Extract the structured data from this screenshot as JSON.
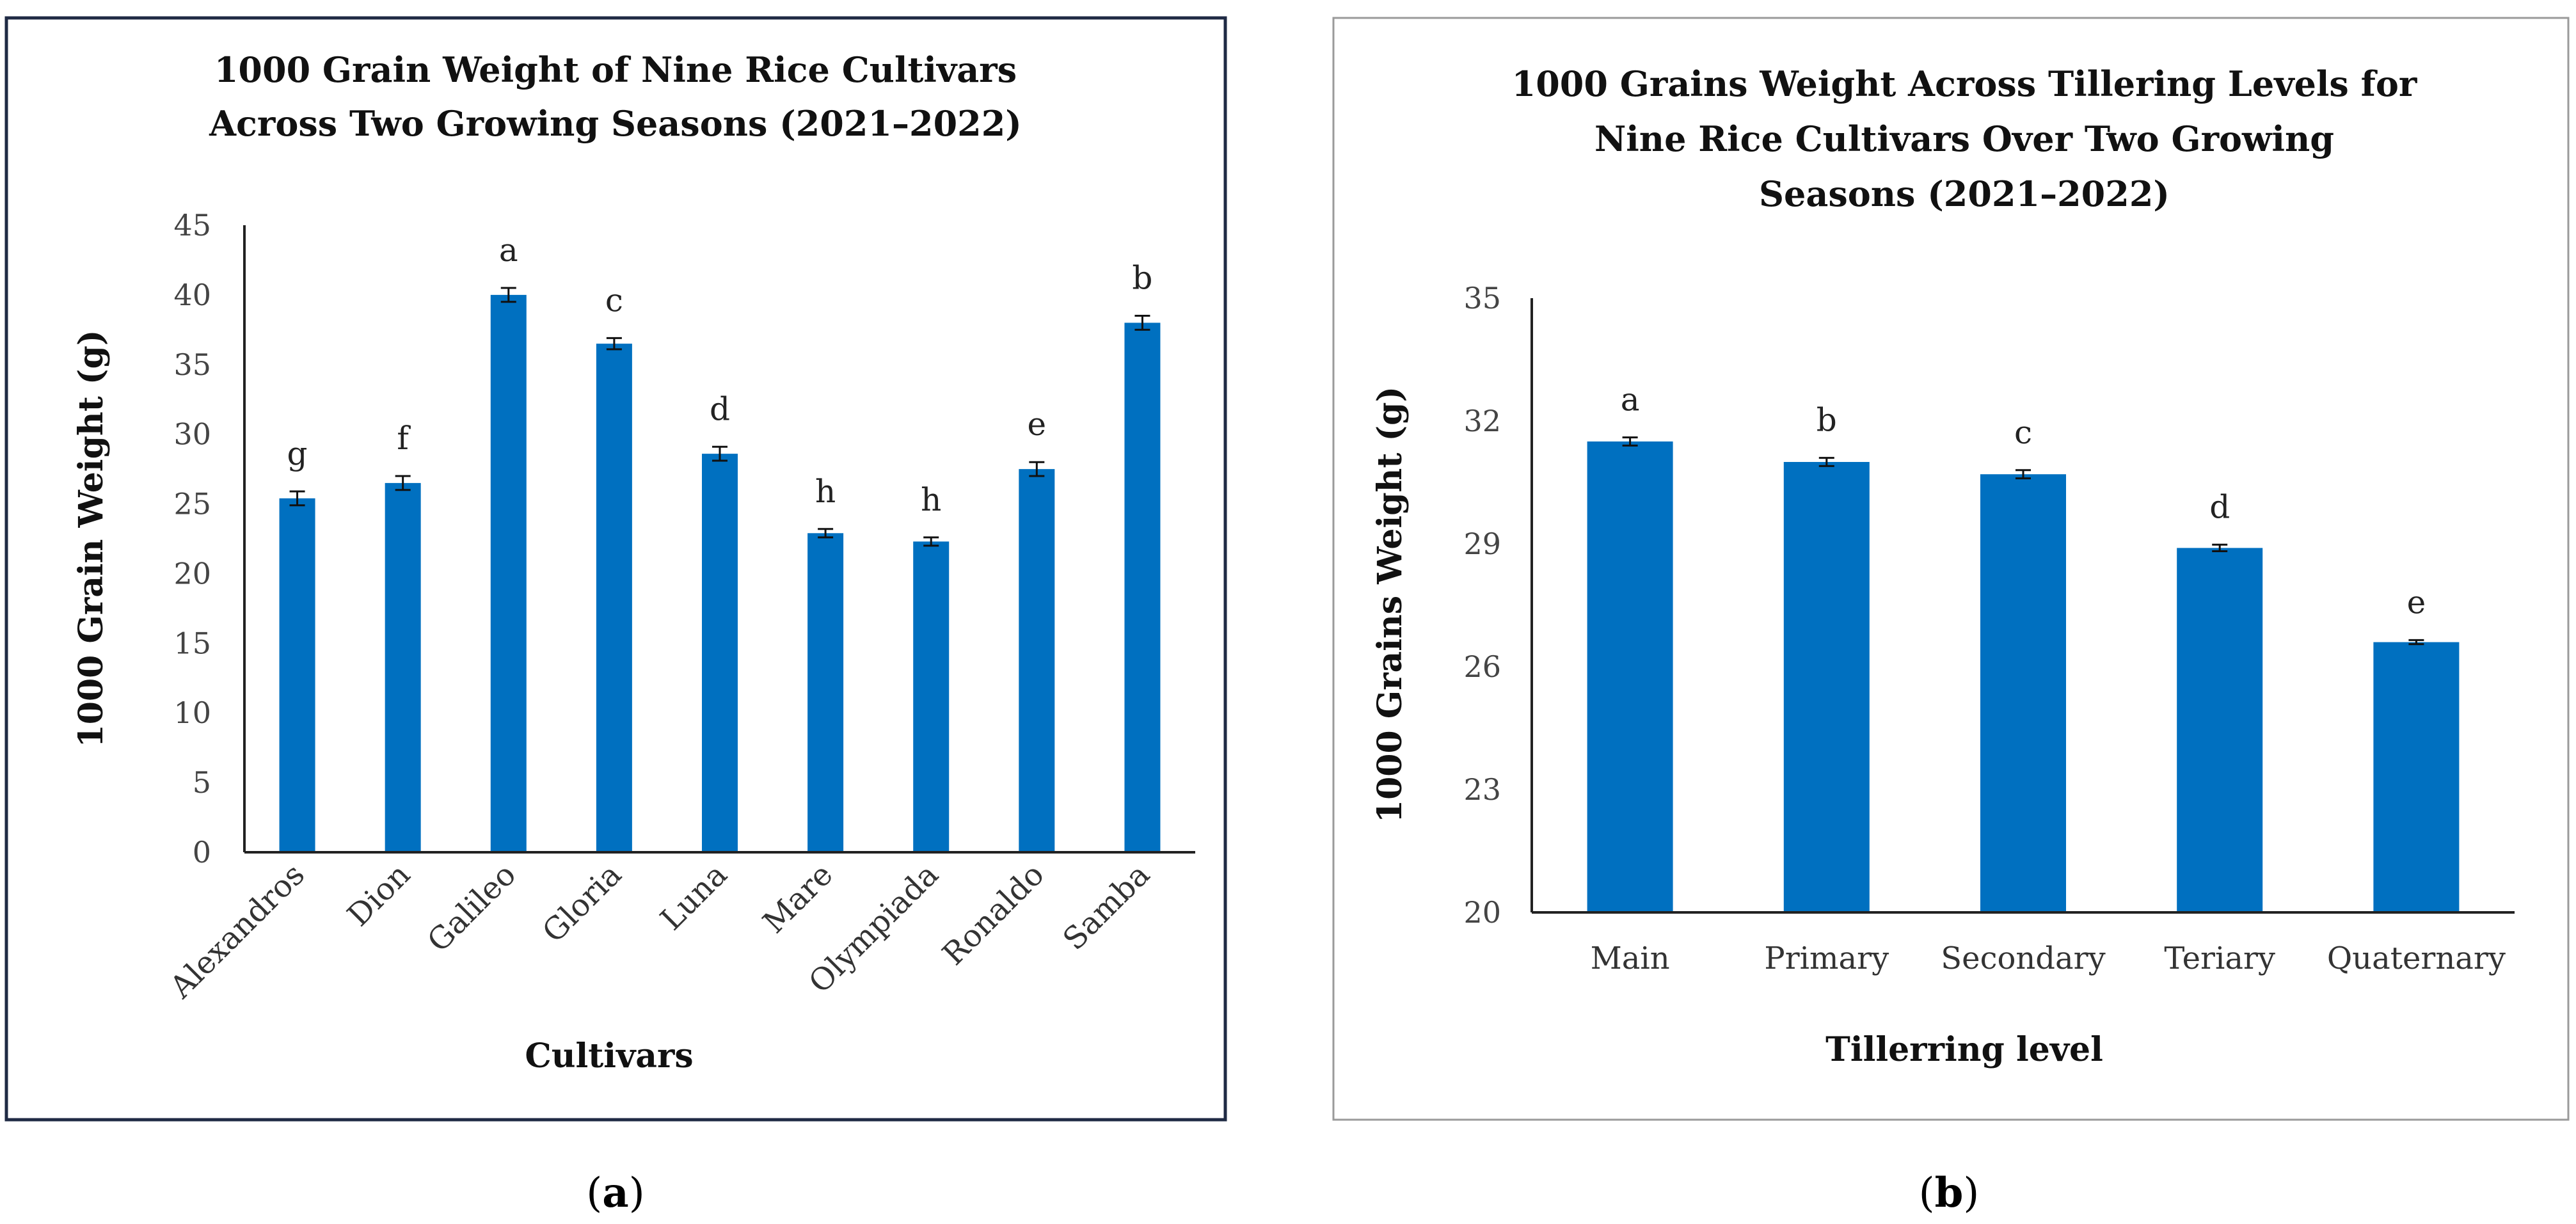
{
  "colors": {
    "bar": "#0070C0",
    "axis": "#222222",
    "frame_a": "#1F2A44",
    "frame_b": "#9A9A9A"
  },
  "chart_data": [
    {
      "id": "a",
      "type": "bar",
      "title_lines": [
        "1000 Grain Weight of Nine Rice Cultivars",
        "Across Two Growing Seasons  (2021–2022)"
      ],
      "xlabel": "Cultivars",
      "ylabel": "1000 Grain Weight  (g)",
      "ylim": [
        0,
        45
      ],
      "yticks": [
        0,
        5,
        10,
        15,
        20,
        25,
        30,
        35,
        40,
        45
      ],
      "grid": false,
      "categories": [
        "Alexandros",
        "Dion",
        "Galileo",
        "Gloria",
        "Luna",
        "Mare",
        "Olympiada",
        "Ronaldo",
        "Samba"
      ],
      "values": [
        25.4,
        26.5,
        40.0,
        36.5,
        28.6,
        22.9,
        22.3,
        27.5,
        38.0
      ],
      "errors": [
        0.5,
        0.5,
        0.5,
        0.4,
        0.5,
        0.3,
        0.3,
        0.5,
        0.5
      ],
      "letters": [
        "g",
        "f",
        "a",
        "c",
        "d",
        "h",
        "h",
        "e",
        "b"
      ],
      "caption_open": "(",
      "caption_letter": "a",
      "caption_close": ")"
    },
    {
      "id": "b",
      "type": "bar",
      "title_lines": [
        "1000 Grains Weight Across Tillering Levels for",
        "Nine Rice Cultivars Over Two Growing",
        "Seasons (2021–2022)"
      ],
      "xlabel": "Tillerring level",
      "ylabel": "1000 Grains Weight (g)",
      "ylim": [
        20,
        35
      ],
      "yticks": [
        20,
        23,
        26,
        29,
        32,
        35
      ],
      "grid": false,
      "categories": [
        "Main",
        "Primary",
        "Secondary",
        "Teriary",
        "Quaternary"
      ],
      "values": [
        31.5,
        31.0,
        30.7,
        28.9,
        26.6
      ],
      "errors": [
        0.1,
        0.1,
        0.1,
        0.08,
        0.05
      ],
      "letters": [
        "a",
        "b",
        "c",
        "d",
        "e"
      ],
      "caption_open": "(",
      "caption_letter": "b",
      "caption_close": ")"
    }
  ]
}
